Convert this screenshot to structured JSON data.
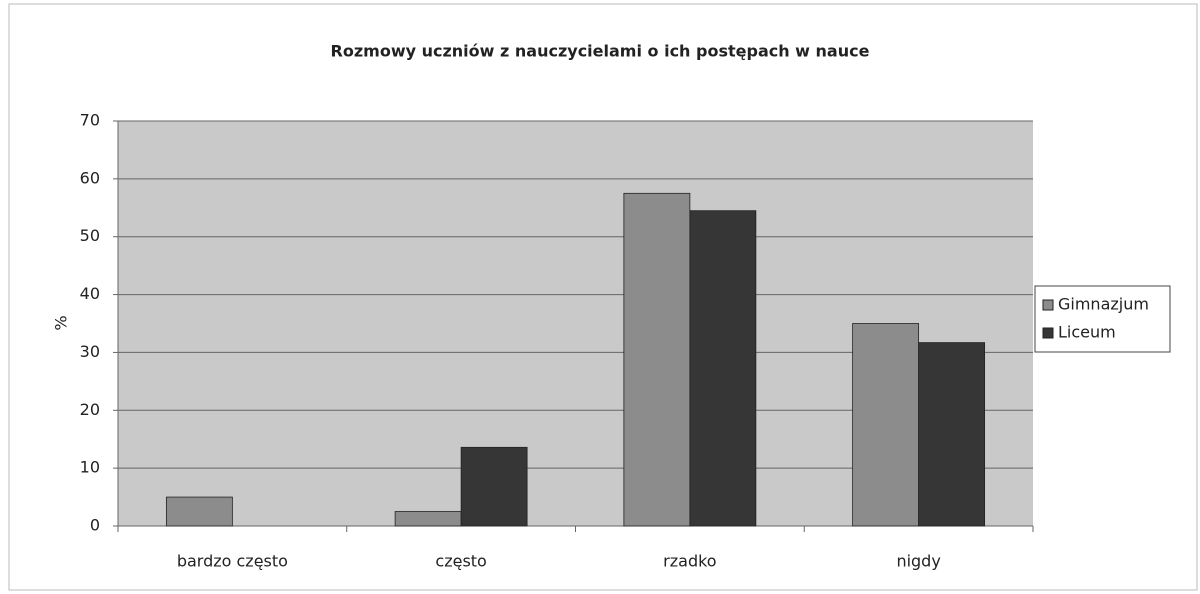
{
  "chart_data": {
    "type": "bar",
    "title": "Rozmowy uczniów z nauczycielami o ich postępach w nauce",
    "y_label": "%",
    "categories": [
      "bardzo często",
      "często",
      "rzadko",
      "nigdy"
    ],
    "series": [
      {
        "name": "Gimnazjum",
        "color": "#8c8c8c",
        "values": [
          5,
          2.5,
          57.5,
          35
        ]
      },
      {
        "name": "Liceum",
        "color": "#363636",
        "values": [
          0,
          13.6,
          54.5,
          31.7
        ]
      }
    ],
    "ylim": [
      0,
      70
    ],
    "yticks": [
      0,
      10,
      20,
      30,
      40,
      50,
      60,
      70
    ],
    "grid": true,
    "legend": "right"
  }
}
